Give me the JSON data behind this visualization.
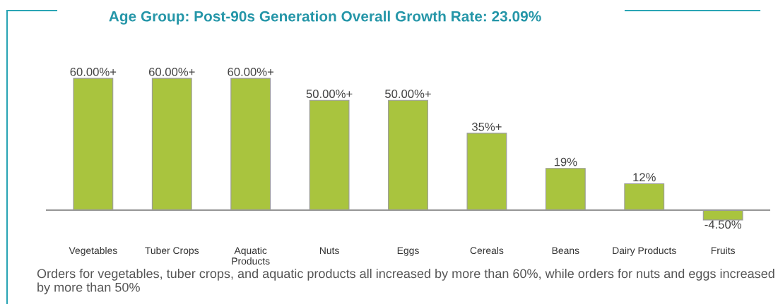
{
  "chart_data": {
    "type": "bar",
    "title": "Age Group: Post-90s Generation Overall Growth Rate: 23.09%",
    "categories": [
      "Vegetables",
      "Tuber Crops",
      "Aquatic\nProducts",
      "Nuts",
      "Eggs",
      "Cereals",
      "Beans",
      "Dairy Products",
      "Fruits"
    ],
    "values": [
      60,
      60,
      60,
      50,
      50,
      35,
      19,
      12,
      -4.5
    ],
    "value_labels": [
      "60.00%+",
      "60.00%+",
      "60.00%+",
      "50.00%+",
      "50.00%+",
      "35%+",
      "19%",
      "12%",
      "-4.50%"
    ],
    "color": "#a9c43e",
    "annotations": [
      "Orders for vegetables, tuber crops, and aquatic products all increased by more than 60%, while orders for nuts and eggs increased by more than 50%"
    ]
  }
}
